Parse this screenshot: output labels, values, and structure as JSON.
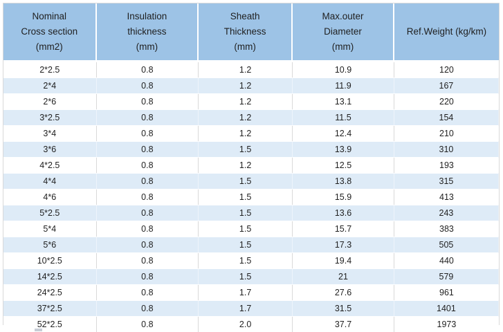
{
  "table": {
    "name": "cable-specification-table",
    "columns": [
      {
        "id": "cross_section",
        "lines": [
          "Nominal",
          "Cross section",
          "(mm2)"
        ]
      },
      {
        "id": "insulation_thickness",
        "lines": [
          "Insulation",
          "thickness",
          "(mm)"
        ]
      },
      {
        "id": "sheath_thickness",
        "lines": [
          "Sheath",
          "Thickness",
          "(mm)"
        ]
      },
      {
        "id": "max_outer_diameter",
        "lines": [
          "Max.outer",
          "Diameter",
          "(mm)"
        ]
      },
      {
        "id": "ref_weight",
        "lines": [
          "Ref.Weight (kg/km)"
        ]
      }
    ],
    "rows": [
      [
        "2*2.5",
        "0.8",
        "1.2",
        "10.9",
        "120"
      ],
      [
        "2*4",
        "0.8",
        "1.2",
        "11.9",
        "167"
      ],
      [
        "2*6",
        "0.8",
        "1.2",
        "13.1",
        "220"
      ],
      [
        "3*2.5",
        "0.8",
        "1.2",
        "11.5",
        "154"
      ],
      [
        "3*4",
        "0.8",
        "1.2",
        "12.4",
        "210"
      ],
      [
        "3*6",
        "0.8",
        "1.5",
        "13.9",
        "310"
      ],
      [
        "4*2.5",
        "0.8",
        "1.2",
        "12.5",
        "193"
      ],
      [
        "4*4",
        "0.8",
        "1.5",
        "13.8",
        "315"
      ],
      [
        "4*6",
        "0.8",
        "1.5",
        "15.9",
        "413"
      ],
      [
        "5*2.5",
        "0.8",
        "1.5",
        "13.6",
        "243"
      ],
      [
        "5*4",
        "0.8",
        "1.5",
        "15.7",
        "383"
      ],
      [
        "5*6",
        "0.8",
        "1.5",
        "17.3",
        "505"
      ],
      [
        "10*2.5",
        "0.8",
        "1.5",
        "19.4",
        "440"
      ],
      [
        "14*2.5",
        "0.8",
        "1.5",
        "21",
        "579"
      ],
      [
        "24*2.5",
        "0.8",
        "1.7",
        "27.6",
        "961"
      ],
      [
        "37*2.5",
        "0.8",
        "1.7",
        "31.5",
        "1401"
      ],
      [
        "52*2.5",
        "0.8",
        "2.0",
        "37.7",
        "1973"
      ]
    ]
  },
  "colors": {
    "header_bg": "#9DC3E6",
    "alt_row_bg": "#DEEBF7",
    "row_bg": "#FFFFFF",
    "border": "#D9D9D9",
    "text": "#1F1F1F"
  }
}
